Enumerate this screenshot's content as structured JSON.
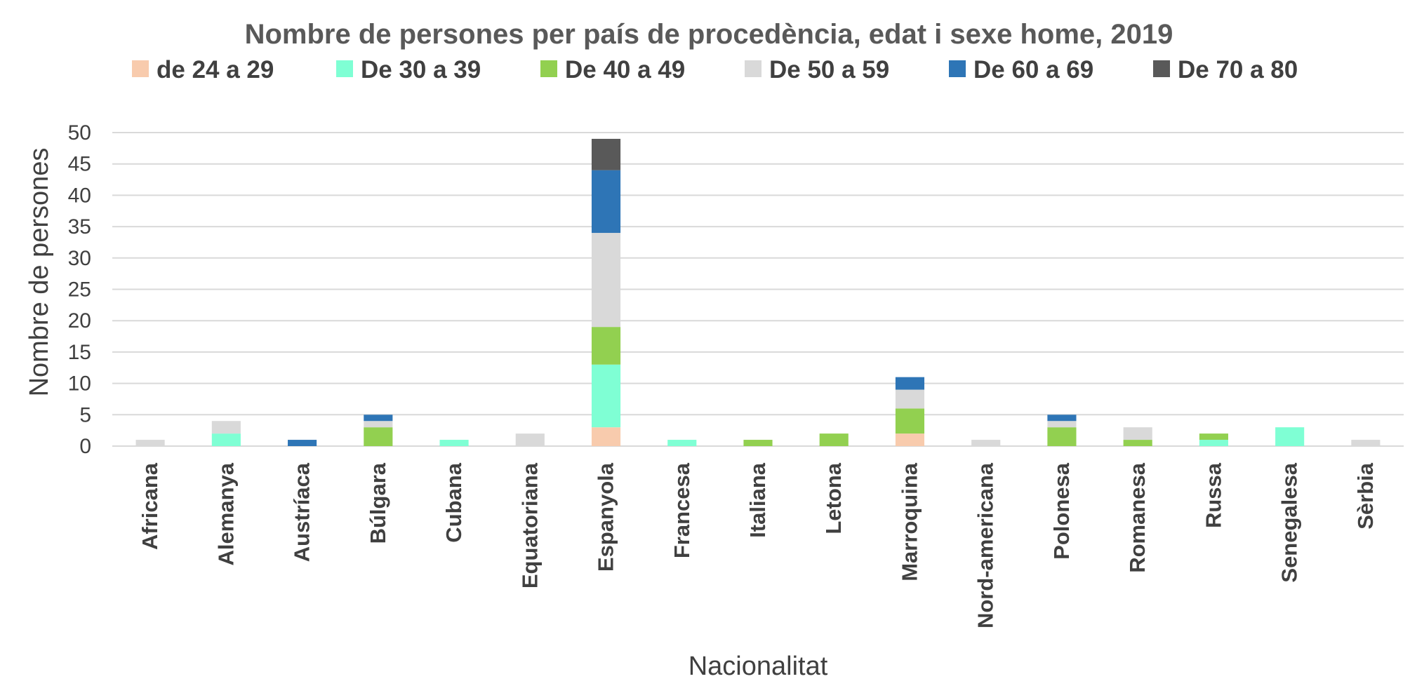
{
  "chart_data": {
    "type": "bar",
    "stacked": true,
    "title": "Nombre de persones per país de procedència, edat i sexe home, 2019",
    "xlabel": "Nacionalitat",
    "ylabel": "Nombre de persones",
    "ylim": [
      0,
      50
    ],
    "yticks": [
      0,
      5,
      10,
      15,
      20,
      25,
      30,
      35,
      40,
      45,
      50
    ],
    "grid": true,
    "legend_position": "top",
    "categories": [
      "Africana",
      "Alemanya",
      "Austríaca",
      "Búlgara",
      "Cubana",
      "Equatoriana",
      "Espanyola",
      "Francesa",
      "Italiana",
      "Letona",
      "Marroquina",
      "Nord-americana",
      "Polonesa",
      "Romanesa",
      "Russa",
      "Senegalesa",
      "Sèrbia"
    ],
    "series": [
      {
        "name": "de 24 a 29",
        "color": "#f8cbad",
        "values": [
          0,
          0,
          0,
          0,
          0,
          0,
          3,
          0,
          0,
          0,
          2,
          0,
          0,
          0,
          0,
          0,
          0
        ]
      },
      {
        "name": "De 30 a 39",
        "color": "#7fffd4",
        "values": [
          0,
          2,
          0,
          0,
          1,
          0,
          10,
          1,
          0,
          0,
          0,
          0,
          0,
          0,
          1,
          3,
          0
        ]
      },
      {
        "name": "De 40 a 49",
        "color": "#92d050",
        "values": [
          0,
          0,
          0,
          3,
          0,
          0,
          6,
          0,
          1,
          2,
          4,
          0,
          3,
          1,
          1,
          0,
          0
        ]
      },
      {
        "name": "De 50 a 59",
        "color": "#d9d9d9",
        "values": [
          1,
          2,
          0,
          1,
          0,
          2,
          15,
          0,
          0,
          0,
          3,
          1,
          1,
          2,
          0,
          0,
          1
        ]
      },
      {
        "name": "De 60 a 69",
        "color": "#2e75b6",
        "values": [
          0,
          0,
          1,
          1,
          0,
          0,
          10,
          0,
          0,
          0,
          2,
          0,
          1,
          0,
          0,
          0,
          0
        ]
      },
      {
        "name": "De 70 a 80",
        "color": "#595959",
        "values": [
          0,
          0,
          0,
          0,
          0,
          0,
          5,
          0,
          0,
          0,
          0,
          0,
          0,
          0,
          0,
          0,
          0
        ]
      }
    ]
  }
}
